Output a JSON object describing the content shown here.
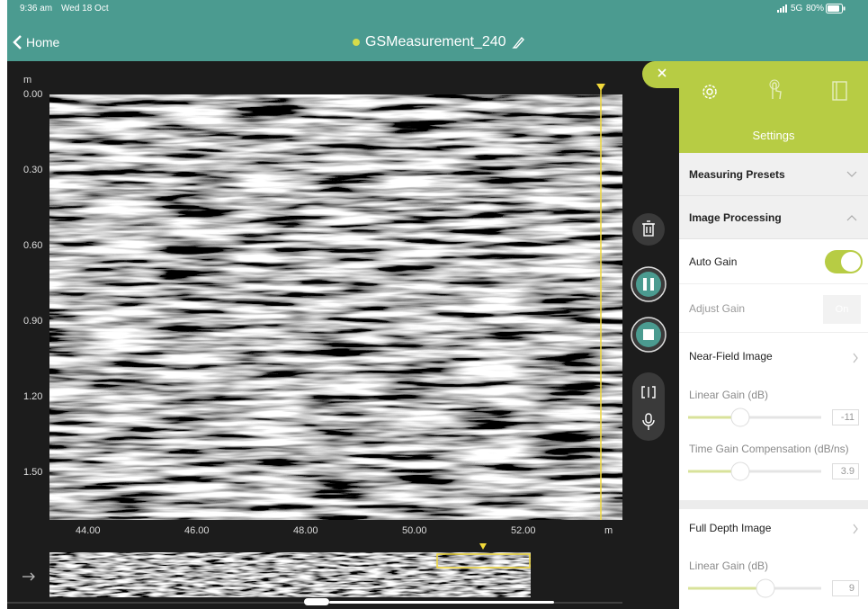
{
  "status_bar": {
    "time": "9:36 am",
    "date": "Wed 18 Oct",
    "network": "5G",
    "battery": "80%"
  },
  "nav": {
    "back": "Home",
    "title": "GSMeasurement_240"
  },
  "radargram": {
    "depth_unit": "m",
    "depth_labels": [
      "0.00",
      "0.30",
      "0.60",
      "0.90",
      "1.20",
      "1.50"
    ],
    "distance_labels": [
      "44.00",
      "46.00",
      "48.00",
      "50.00",
      "52.00"
    ],
    "distance_unit": "m"
  },
  "settings": {
    "title": "Settings",
    "measuring_presets": "Measuring Presets",
    "image_processing": "Image Processing",
    "auto_gain": "Auto Gain",
    "adjust_gain": "Adjust Gain",
    "adjust_gain_button": "On",
    "near_field": {
      "title": "Near-Field Image",
      "linear_gain_label": "Linear Gain (dB)",
      "linear_gain_value": -11,
      "tgc_label": "Time Gain Compensation (dB/ns)",
      "tgc_value": 3.9
    },
    "full_depth": {
      "title": "Full Depth Image",
      "linear_gain_label": "Linear Gain (dB)",
      "linear_gain_value": 9
    }
  }
}
